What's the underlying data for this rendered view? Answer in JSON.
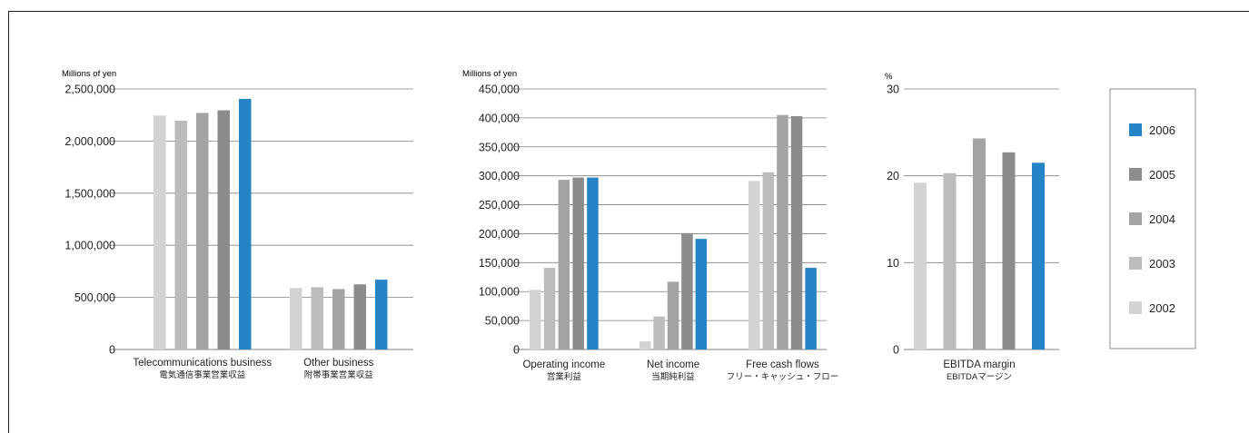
{
  "colors": {
    "2002": "#d3d3d3",
    "2003": "#bcbcbd",
    "2004": "#a3a3a4",
    "2005": "#8c8c8d",
    "2006": "#2484c6",
    "gridline": "#808080",
    "text": "#231f20"
  },
  "legend": {
    "items": [
      {
        "label": "2006",
        "color_key": "2006"
      },
      {
        "label": "2005",
        "color_key": "2005"
      },
      {
        "label": "2004",
        "color_key": "2004"
      },
      {
        "label": "2003",
        "color_key": "2003"
      },
      {
        "label": "2002",
        "color_key": "2002"
      }
    ]
  },
  "chart_data": [
    {
      "type": "bar",
      "unit_label": "Millions of yen",
      "yticks": [
        "2,500,000",
        "2,000,000",
        "1,500,000",
        "1,000,000",
        "500,000",
        "0"
      ],
      "ylim": [
        0,
        2500000
      ],
      "grid": true,
      "categories": [
        {
          "label": "Telecommunications business",
          "sublabel": "電気通信事業営業収益"
        },
        {
          "label": "Other business",
          "sublabel": "附帯事業営業収益"
        }
      ],
      "series": [
        {
          "name": "2002",
          "values": [
            2245000,
            590000
          ]
        },
        {
          "name": "2003",
          "values": [
            2195000,
            598000
          ]
        },
        {
          "name": "2004",
          "values": [
            2270000,
            580000
          ]
        },
        {
          "name": "2005",
          "values": [
            2295000,
            625000
          ]
        },
        {
          "name": "2006",
          "values": [
            2405000,
            670000
          ]
        }
      ]
    },
    {
      "type": "bar",
      "unit_label": "Millions of yen",
      "yticks": [
        "450,000",
        "400,000",
        "350,000",
        "300,000",
        "250,000",
        "200,000",
        "150,000",
        "100,000",
        "50,000",
        "0"
      ],
      "ylim": [
        0,
        450000
      ],
      "grid": true,
      "categories": [
        {
          "label": "Operating income",
          "sublabel": "営業利益"
        },
        {
          "label": "Net income",
          "sublabel": "当期純利益"
        },
        {
          "label": "Free cash flows",
          "sublabel": "フリー・キャッシュ・フロー"
        }
      ],
      "series": [
        {
          "name": "2002",
          "values": [
            103000,
            14000,
            291000
          ]
        },
        {
          "name": "2003",
          "values": [
            141000,
            57000,
            306000
          ]
        },
        {
          "name": "2004",
          "values": [
            293000,
            117000,
            405000
          ]
        },
        {
          "name": "2005",
          "values": [
            297000,
            201000,
            403000
          ]
        },
        {
          "name": "2006",
          "values": [
            297000,
            191000,
            141000
          ]
        }
      ]
    },
    {
      "type": "bar",
      "unit_label": "%",
      "yticks": [
        "30",
        "20",
        "10",
        "0"
      ],
      "ylim": [
        0,
        30
      ],
      "grid": true,
      "categories": [
        {
          "label": "EBITDA margin",
          "sublabel": "EBITDAマージン"
        }
      ],
      "series": [
        {
          "name": "2002",
          "values": [
            19.2
          ]
        },
        {
          "name": "2003",
          "values": [
            20.3
          ]
        },
        {
          "name": "2004",
          "values": [
            24.3
          ]
        },
        {
          "name": "2005",
          "values": [
            22.7
          ]
        },
        {
          "name": "2006",
          "values": [
            21.5
          ]
        }
      ]
    }
  ]
}
